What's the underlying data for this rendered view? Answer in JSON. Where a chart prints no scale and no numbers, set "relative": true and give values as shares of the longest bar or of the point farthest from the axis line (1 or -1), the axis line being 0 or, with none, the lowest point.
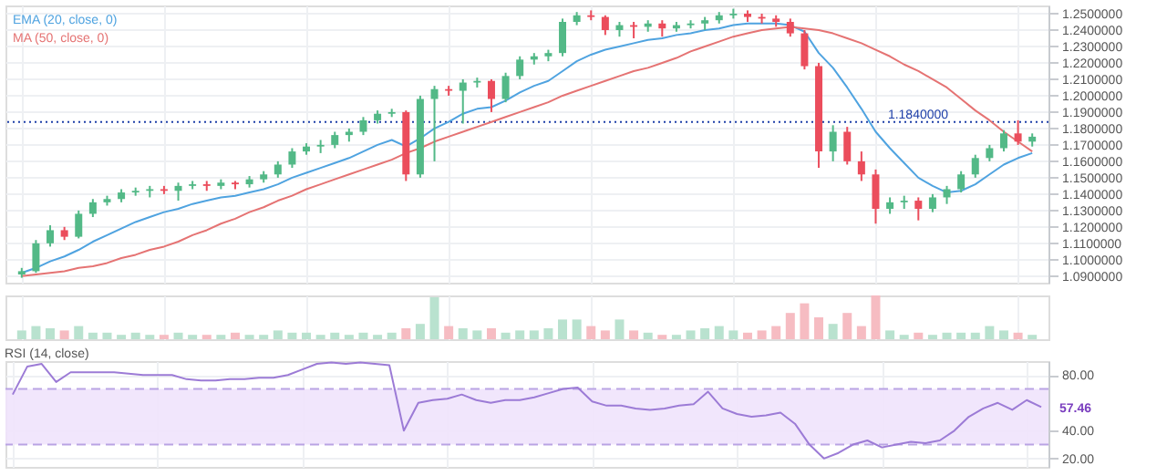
{
  "chart_data": [
    {
      "type": "candlestick",
      "categories": [
        null,
        null,
        null,
        null,
        null,
        null,
        null,
        null,
        null,
        null,
        null,
        null,
        null,
        null,
        null,
        null,
        null,
        null,
        null,
        null,
        null,
        null,
        null,
        null,
        null,
        null,
        null,
        null,
        null,
        null,
        null,
        null,
        null,
        null,
        null,
        null,
        null,
        null,
        null,
        null,
        null,
        null,
        null,
        null,
        null,
        null,
        null,
        null,
        null,
        null,
        null,
        null,
        null,
        null,
        null,
        null,
        null,
        null,
        null,
        null,
        null,
        null,
        null,
        null,
        null,
        null,
        null,
        null,
        null,
        null,
        null,
        null
      ],
      "ohlc": [
        [
          1.091,
          1.095,
          1.089,
          1.093
        ],
        [
          1.093,
          1.112,
          1.092,
          1.11
        ],
        [
          1.11,
          1.121,
          1.108,
          1.118
        ],
        [
          1.118,
          1.12,
          1.112,
          1.114
        ],
        [
          1.114,
          1.13,
          1.113,
          1.128
        ],
        [
          1.128,
          1.137,
          1.126,
          1.135
        ],
        [
          1.135,
          1.139,
          1.133,
          1.137
        ],
        [
          1.137,
          1.143,
          1.135,
          1.141
        ],
        [
          1.141,
          1.144,
          1.139,
          1.142
        ],
        [
          1.142,
          1.145,
          1.138,
          1.143
        ],
        [
          1.143,
          1.145,
          1.14,
          1.142
        ],
        [
          1.142,
          1.147,
          1.136,
          1.145
        ],
        [
          1.145,
          1.148,
          1.143,
          1.146
        ],
        [
          1.146,
          1.148,
          1.142,
          1.145
        ],
        [
          1.145,
          1.149,
          1.143,
          1.147
        ],
        [
          1.147,
          1.148,
          1.143,
          1.146
        ],
        [
          1.146,
          1.151,
          1.144,
          1.149
        ],
        [
          1.149,
          1.154,
          1.147,
          1.152
        ],
        [
          1.152,
          1.16,
          1.15,
          1.158
        ],
        [
          1.158,
          1.168,
          1.156,
          1.166
        ],
        [
          1.166,
          1.171,
          1.164,
          1.169
        ],
        [
          1.169,
          1.173,
          1.165,
          1.17
        ],
        [
          1.17,
          1.178,
          1.168,
          1.176
        ],
        [
          1.176,
          1.18,
          1.172,
          1.178
        ],
        [
          1.178,
          1.187,
          1.176,
          1.185
        ],
        [
          1.185,
          1.191,
          1.183,
          1.189
        ],
        [
          1.189,
          1.192,
          1.187,
          1.19
        ],
        [
          1.19,
          1.191,
          1.148,
          1.152
        ],
        [
          1.152,
          1.2,
          1.15,
          1.198
        ],
        [
          1.198,
          1.206,
          1.16,
          1.204
        ],
        [
          1.204,
          1.206,
          1.2,
          1.203
        ],
        [
          1.203,
          1.21,
          1.183,
          1.208
        ],
        [
          1.208,
          1.211,
          1.205,
          1.209
        ],
        [
          1.209,
          1.21,
          1.19,
          1.198
        ],
        [
          1.198,
          1.214,
          1.196,
          1.212
        ],
        [
          1.212,
          1.224,
          1.21,
          1.222
        ],
        [
          1.222,
          1.226,
          1.219,
          1.224
        ],
        [
          1.224,
          1.228,
          1.221,
          1.226
        ],
        [
          1.226,
          1.247,
          1.224,
          1.245
        ],
        [
          1.245,
          1.251,
          1.243,
          1.249
        ],
        [
          1.249,
          1.252,
          1.246,
          1.248
        ],
        [
          1.248,
          1.249,
          1.237,
          1.24
        ],
        [
          1.24,
          1.245,
          1.236,
          1.243
        ],
        [
          1.243,
          1.245,
          1.235,
          1.242
        ],
        [
          1.242,
          1.246,
          1.239,
          1.244
        ],
        [
          1.244,
          1.246,
          1.236,
          1.241
        ],
        [
          1.241,
          1.245,
          1.239,
          1.243
        ],
        [
          1.243,
          1.246,
          1.241,
          1.244
        ],
        [
          1.244,
          1.248,
          1.24,
          1.246
        ],
        [
          1.246,
          1.251,
          1.244,
          1.249
        ],
        [
          1.249,
          1.253,
          1.247,
          1.25
        ],
        [
          1.25,
          1.252,
          1.245,
          1.248
        ],
        [
          1.248,
          1.25,
          1.244,
          1.247
        ],
        [
          1.247,
          1.249,
          1.242,
          1.245
        ],
        [
          1.245,
          1.247,
          1.236,
          1.238
        ],
        [
          1.238,
          1.24,
          1.216,
          1.218
        ],
        [
          1.218,
          1.22,
          1.156,
          1.166
        ],
        [
          1.166,
          1.182,
          1.16,
          1.178
        ],
        [
          1.178,
          1.181,
          1.158,
          1.16
        ],
        [
          1.16,
          1.166,
          1.148,
          1.152
        ],
        [
          1.152,
          1.155,
          1.122,
          1.131
        ],
        [
          1.131,
          1.138,
          1.128,
          1.135
        ],
        [
          1.135,
          1.139,
          1.131,
          1.136
        ],
        [
          1.136,
          1.138,
          1.124,
          1.131
        ],
        [
          1.131,
          1.14,
          1.129,
          1.138
        ],
        [
          1.138,
          1.145,
          1.134,
          1.143
        ],
        [
          1.143,
          1.154,
          1.141,
          1.152
        ],
        [
          1.152,
          1.164,
          1.15,
          1.162
        ],
        [
          1.162,
          1.17,
          1.16,
          1.168
        ],
        [
          1.168,
          1.179,
          1.166,
          1.177
        ],
        [
          1.177,
          1.185,
          1.17,
          1.172
        ],
        [
          1.172,
          1.177,
          1.169,
          1.175
        ]
      ],
      "colors": [
        "#53b987",
        "#53b987",
        "#53b987",
        "#eb4d5c",
        "#53b987",
        "#53b987",
        "#53b987",
        "#53b987",
        "#53b987",
        "#53b987",
        "#eb4d5c",
        "#53b987",
        "#53b987",
        "#eb4d5c",
        "#53b987",
        "#eb4d5c",
        "#53b987",
        "#53b987",
        "#53b987",
        "#53b987",
        "#53b987",
        "#53b987",
        "#53b987",
        "#53b987",
        "#53b987",
        "#53b987",
        "#53b987",
        "#eb4d5c",
        "#53b987",
        "#53b987",
        "#eb4d5c",
        "#53b987",
        "#53b987",
        "#eb4d5c",
        "#53b987",
        "#53b987",
        "#53b987",
        "#53b987",
        "#53b987",
        "#53b987",
        "#eb4d5c",
        "#eb4d5c",
        "#53b987",
        "#eb4d5c",
        "#53b987",
        "#eb4d5c",
        "#53b987",
        "#53b987",
        "#53b987",
        "#53b987",
        "#53b987",
        "#eb4d5c",
        "#eb4d5c",
        "#eb4d5c",
        "#eb4d5c",
        "#eb4d5c",
        "#eb4d5c",
        "#53b987",
        "#eb4d5c",
        "#eb4d5c",
        "#eb4d5c",
        "#53b987",
        "#53b987",
        "#eb4d5c",
        "#53b987",
        "#53b987",
        "#53b987",
        "#53b987",
        "#53b987",
        "#53b987",
        "#eb4d5c",
        "#53b987"
      ],
      "series": [
        {
          "name": "EMA (20, close, 0)",
          "type": "line",
          "color": "#4fa3e0",
          "values": [
            1.092,
            1.095,
            1.099,
            1.102,
            1.106,
            1.111,
            1.115,
            1.119,
            1.123,
            1.126,
            1.129,
            1.131,
            1.134,
            1.136,
            1.138,
            1.139,
            1.141,
            1.143,
            1.146,
            1.15,
            1.153,
            1.156,
            1.159,
            1.162,
            1.166,
            1.17,
            1.173,
            1.169,
            1.174,
            1.18,
            1.184,
            1.189,
            1.192,
            1.193,
            1.197,
            1.202,
            1.206,
            1.209,
            1.215,
            1.221,
            1.225,
            1.228,
            1.23,
            1.232,
            1.234,
            1.235,
            1.237,
            1.238,
            1.24,
            1.241,
            1.243,
            1.244,
            1.244,
            1.244,
            1.243,
            1.239,
            1.226,
            1.217,
            1.205,
            1.192,
            1.178,
            1.168,
            1.159,
            1.15,
            1.145,
            1.141,
            1.142,
            1.146,
            1.152,
            1.158,
            1.162,
            1.165
          ]
        },
        {
          "name": "MA (50, close, 0)",
          "type": "line",
          "color": "#e57373",
          "values": [
            1.09,
            1.091,
            1.092,
            1.093,
            1.095,
            1.096,
            1.098,
            1.101,
            1.103,
            1.106,
            1.108,
            1.111,
            1.115,
            1.118,
            1.122,
            1.125,
            1.129,
            1.132,
            1.136,
            1.139,
            1.143,
            1.146,
            1.149,
            1.152,
            1.155,
            1.158,
            1.161,
            1.165,
            1.168,
            1.172,
            1.175,
            1.178,
            1.181,
            1.184,
            1.187,
            1.19,
            1.193,
            1.196,
            1.2,
            1.203,
            1.206,
            1.209,
            1.212,
            1.215,
            1.217,
            1.22,
            1.223,
            1.227,
            1.23,
            1.233,
            1.236,
            1.238,
            1.24,
            1.241,
            1.242,
            1.241,
            1.24,
            1.238,
            1.235,
            1.232,
            1.228,
            1.224,
            1.219,
            1.215,
            1.21,
            1.205,
            1.198,
            1.191,
            1.185,
            1.178,
            1.172,
            1.166
          ]
        }
      ],
      "ylim": [
        1.086,
        1.255
      ],
      "yticks": [
        {
          "value": 1.09,
          "label": "1.0900000"
        },
        {
          "value": 1.1,
          "label": "1.1000000"
        },
        {
          "value": 1.11,
          "label": "1.1100000"
        },
        {
          "value": 1.12,
          "label": "1.1200000"
        },
        {
          "value": 1.13,
          "label": "1.1300000"
        },
        {
          "value": 1.14,
          "label": "1.1400000"
        },
        {
          "value": 1.15,
          "label": "1.1500000"
        },
        {
          "value": 1.16,
          "label": "1.1600000"
        },
        {
          "value": 1.17,
          "label": "1.1700000"
        },
        {
          "value": 1.18,
          "label": "1.1800000"
        },
        {
          "value": 1.19,
          "label": "1.1900000"
        },
        {
          "value": 1.2,
          "label": "1.2000000"
        },
        {
          "value": 1.21,
          "label": "1.2100000"
        },
        {
          "value": 1.22,
          "label": "1.2200000"
        },
        {
          "value": 1.23,
          "label": "1.2300000"
        },
        {
          "value": 1.24,
          "label": "1.2400000"
        },
        {
          "value": 1.25,
          "label": "1.2500000"
        }
      ],
      "grid": true,
      "legend": "top left",
      "ref_lines": [
        {
          "axis": "y",
          "value": 1.184,
          "label": "1.1840000",
          "color": "#1e3fa8",
          "line_style": "dotted"
        }
      ]
    },
    {
      "type": "bar",
      "relative": true,
      "categories": [
        null,
        null,
        null,
        null,
        null,
        null,
        null,
        null,
        null,
        null,
        null,
        null,
        null,
        null,
        null,
        null,
        null,
        null,
        null,
        null,
        null,
        null,
        null,
        null,
        null,
        null,
        null,
        null,
        null,
        null,
        null,
        null,
        null,
        null,
        null,
        null,
        null,
        null,
        null,
        null,
        null,
        null,
        null,
        null,
        null,
        null,
        null,
        null,
        null,
        null,
        null,
        null,
        null,
        null,
        null,
        null,
        null,
        null,
        null,
        null,
        null,
        null,
        null,
        null,
        null,
        null,
        null,
        null,
        null,
        null,
        null,
        null
      ],
      "values": [
        0.2,
        0.3,
        0.25,
        0.2,
        0.3,
        0.15,
        0.15,
        0.1,
        0.15,
        0.1,
        0.1,
        0.15,
        0.1,
        0.1,
        0.1,
        0.15,
        0.1,
        0.1,
        0.2,
        0.15,
        0.15,
        0.1,
        0.15,
        0.1,
        0.15,
        0.1,
        0.15,
        0.25,
        0.35,
        0.96,
        0.3,
        0.25,
        0.2,
        0.25,
        0.15,
        0.2,
        0.2,
        0.25,
        0.45,
        0.45,
        0.3,
        0.2,
        0.45,
        0.2,
        0.15,
        0.1,
        0.1,
        0.2,
        0.25,
        0.3,
        0.2,
        0.15,
        0.2,
        0.3,
        0.6,
        0.82,
        0.5,
        0.35,
        0.6,
        0.3,
        1,
        0.2,
        0.1,
        0.15,
        0.1,
        0.15,
        0.15,
        0.15,
        0.3,
        0.2,
        0.15,
        0.1
      ],
      "colors": [
        "#b9e2cf",
        "#b9e2cf",
        "#b9e2cf",
        "#f6bcc2",
        "#b9e2cf",
        "#b9e2cf",
        "#b9e2cf",
        "#b9e2cf",
        "#b9e2cf",
        "#b9e2cf",
        "#f6bcc2",
        "#b9e2cf",
        "#b9e2cf",
        "#f6bcc2",
        "#b9e2cf",
        "#f6bcc2",
        "#b9e2cf",
        "#b9e2cf",
        "#b9e2cf",
        "#b9e2cf",
        "#b9e2cf",
        "#b9e2cf",
        "#b9e2cf",
        "#b9e2cf",
        "#b9e2cf",
        "#b9e2cf",
        "#b9e2cf",
        "#f6bcc2",
        "#b9e2cf",
        "#b9e2cf",
        "#f6bcc2",
        "#b9e2cf",
        "#b9e2cf",
        "#f6bcc2",
        "#b9e2cf",
        "#b9e2cf",
        "#b9e2cf",
        "#b9e2cf",
        "#b9e2cf",
        "#b9e2cf",
        "#f6bcc2",
        "#f6bcc2",
        "#b9e2cf",
        "#f6bcc2",
        "#b9e2cf",
        "#f6bcc2",
        "#b9e2cf",
        "#b9e2cf",
        "#b9e2cf",
        "#b9e2cf",
        "#b9e2cf",
        "#f6bcc2",
        "#f6bcc2",
        "#f6bcc2",
        "#f6bcc2",
        "#f6bcc2",
        "#f6bcc2",
        "#b9e2cf",
        "#f6bcc2",
        "#f6bcc2",
        "#f6bcc2",
        "#b9e2cf",
        "#b9e2cf",
        "#f6bcc2",
        "#b9e2cf",
        "#b9e2cf",
        "#b9e2cf",
        "#b9e2cf",
        "#b9e2cf",
        "#b9e2cf",
        "#f6bcc2",
        "#b9e2cf"
      ],
      "grid": true
    },
    {
      "type": "line",
      "title": "RSI (14, close)",
      "categories": [
        null,
        null,
        null,
        null,
        null,
        null,
        null,
        null,
        null,
        null,
        null,
        null,
        null,
        null,
        null,
        null,
        null,
        null,
        null,
        null,
        null,
        null,
        null,
        null,
        null,
        null,
        null,
        null,
        null,
        null,
        null,
        null,
        null,
        null,
        null,
        null,
        null,
        null,
        null,
        null,
        null,
        null,
        null,
        null,
        null,
        null,
        null,
        null,
        null,
        null,
        null,
        null,
        null,
        null,
        null,
        null,
        null,
        null,
        null,
        null,
        null,
        null,
        null,
        null,
        null,
        null,
        null,
        null,
        null,
        null,
        null,
        null
      ],
      "series": [
        {
          "color": "#9c7bd6",
          "values": [
            66,
            86,
            88,
            75,
            82,
            82,
            82,
            82,
            81,
            80,
            80,
            80,
            77,
            76,
            76,
            77,
            77,
            78,
            78,
            80,
            84,
            88,
            89,
            88,
            89,
            88,
            87,
            40,
            60,
            62,
            63,
            66,
            62,
            60,
            62,
            62,
            64,
            67,
            70,
            71,
            61,
            58,
            58,
            56,
            55,
            56,
            58,
            59,
            68,
            56,
            52,
            50,
            51,
            53,
            45,
            30,
            20,
            24,
            30,
            33,
            28,
            30,
            32,
            31,
            33,
            40,
            50,
            56,
            60,
            55,
            62,
            57
          ]
        }
      ],
      "ylim": [
        14,
        90
      ],
      "yticks": [
        {
          "value": 20,
          "label": "20.00"
        },
        {
          "value": 40,
          "label": "40.00"
        },
        {
          "value": 80,
          "label": "80.00"
        }
      ],
      "bands": [
        {
          "axis": "y",
          "from": 30,
          "to": 70,
          "color": "#f0e3fc"
        }
      ],
      "ref_lines": [
        {
          "axis": "y",
          "value": 70,
          "color": "#b9a3e3",
          "line_style": "dashed"
        },
        {
          "axis": "y",
          "value": 30,
          "color": "#b9a3e3",
          "line_style": "dashed"
        }
      ],
      "annotations": [
        "57.46"
      ],
      "grid": true
    }
  ]
}
